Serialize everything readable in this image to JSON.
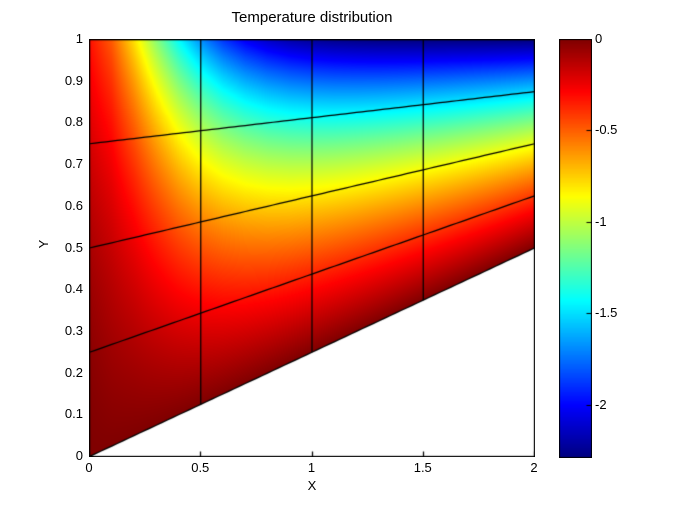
{
  "figure": {
    "background": "#ffffff",
    "title": "Temperature distribution"
  },
  "axes": {
    "xlabel": "X",
    "ylabel": "Y",
    "x_tick_labels": [
      "0",
      "0.5",
      "1",
      "1.5",
      "2"
    ],
    "x_tick_values": [
      0,
      0.5,
      1,
      1.5,
      2
    ],
    "y_tick_labels": [
      "0",
      "0.1",
      "0.2",
      "0.3",
      "0.4",
      "0.5",
      "0.6",
      "0.7",
      "0.8",
      "0.9",
      "1"
    ],
    "y_tick_values": [
      0,
      0.1,
      0.2,
      0.3,
      0.4,
      0.5,
      0.6,
      0.7,
      0.8,
      0.9,
      1
    ],
    "x_range": [
      0,
      2
    ],
    "y_range": [
      0,
      1
    ],
    "axis_color": "#000000",
    "text_color": "#000000"
  },
  "colorbar": {
    "colormap": "jet",
    "clim": [
      -2.287,
      0
    ],
    "tick_labels": [
      "0",
      "-0.5",
      "-1",
      "-1.5",
      "-2"
    ],
    "tick_values": [
      0,
      -0.5,
      -1,
      -1.5,
      -2
    ]
  },
  "chart_data": {
    "type": "heatmap",
    "title": "Temperature distribution",
    "xlabel": "X",
    "ylabel": "Y",
    "xlim": [
      0,
      2
    ],
    "ylim": [
      0,
      1
    ],
    "colormap": "jet",
    "value_range": [
      -2.287,
      0
    ],
    "legend_position": "right-colorbar",
    "grid_on": false,
    "domain": {
      "shape": "quadrilateral",
      "corners_xy": [
        [
          0,
          0
        ],
        [
          2,
          0.5
        ],
        [
          2,
          1
        ],
        [
          0,
          1
        ]
      ],
      "bottom_edge": "y = 0.25*x",
      "top_edge_y": 1
    },
    "mesh_lines": {
      "vertical_x": [
        0,
        0.5,
        1,
        1.5,
        2
      ],
      "lateral_fraction_s": [
        0,
        0.25,
        0.5,
        0.75,
        1
      ],
      "color": "#000000"
    },
    "grid": {
      "nx": 21,
      "ns": 21,
      "x": [
        0.0,
        0.1,
        0.2,
        0.3,
        0.4,
        0.5,
        0.6,
        0.7,
        0.8,
        0.9,
        1.0,
        1.1,
        1.2,
        1.3,
        1.4,
        1.5,
        1.6,
        1.7,
        1.8,
        1.9,
        2.0
      ],
      "s": [
        0.0,
        0.05,
        0.1,
        0.15,
        0.2,
        0.25,
        0.3,
        0.35,
        0.4,
        0.45,
        0.5,
        0.55,
        0.6,
        0.65,
        0.7,
        0.75,
        0.8,
        0.85,
        0.9,
        0.95,
        1.0
      ],
      "note": "temperature T(x,s); physical y = 0.25*x + s*(1-0.25*x)",
      "values": [
        [
          -0.0,
          -0.001,
          -0.005,
          -0.011,
          -0.018,
          -0.026,
          -0.037,
          -0.048,
          -0.061,
          -0.076,
          -0.092,
          -0.109,
          -0.128,
          -0.147,
          -0.168,
          -0.191,
          -0.214,
          -0.239,
          -0.265,
          -0.292,
          -0.32
        ],
        [
          0.0,
          -0.014,
          -0.028,
          -0.043,
          -0.058,
          -0.073,
          -0.09,
          -0.107,
          -0.124,
          -0.143,
          -0.164,
          -0.186,
          -0.209,
          -0.234,
          -0.262,
          -0.292,
          -0.324,
          -0.36,
          -0.399,
          -0.442,
          -0.49
        ],
        [
          0.0,
          -0.022,
          -0.044,
          -0.066,
          -0.09,
          -0.114,
          -0.139,
          -0.165,
          -0.193,
          -0.223,
          -0.256,
          -0.29,
          -0.328,
          -0.369,
          -0.414,
          -0.463,
          -0.517,
          -0.576,
          -0.64,
          -0.712,
          -0.79
        ],
        [
          0.0,
          -0.031,
          -0.063,
          -0.095,
          -0.128,
          -0.163,
          -0.199,
          -0.237,
          -0.277,
          -0.32,
          -0.366,
          -0.416,
          -0.47,
          -0.529,
          -0.593,
          -0.662,
          -0.738,
          -0.821,
          -0.912,
          -1.012,
          -1.121
        ],
        [
          0.0,
          -0.041,
          -0.082,
          -0.124,
          -0.167,
          -0.212,
          -0.259,
          -0.308,
          -0.36,
          -0.416,
          -0.475,
          -0.539,
          -0.609,
          -0.684,
          -0.765,
          -0.853,
          -0.949,
          -1.054,
          -1.168,
          -1.292,
          -1.428
        ],
        [
          0.0,
          -0.049,
          -0.099,
          -0.149,
          -0.201,
          -0.255,
          -0.311,
          -0.371,
          -0.433,
          -0.5,
          -0.571,
          -0.647,
          -0.729,
          -0.817,
          -0.913,
          -1.016,
          -1.129,
          -1.251,
          -1.384,
          -1.528,
          -1.685
        ],
        [
          0.0,
          -0.056,
          -0.113,
          -0.17,
          -0.229,
          -0.291,
          -0.354,
          -0.421,
          -0.492,
          -0.567,
          -0.647,
          -0.733,
          -0.825,
          -0.924,
          -1.031,
          -1.146,
          -1.271,
          -1.407,
          -1.553,
          -1.712,
          -1.884
        ],
        [
          0.0,
          -0.061,
          -0.123,
          -0.186,
          -0.251,
          -0.318,
          -0.388,
          -0.461,
          -0.538,
          -0.619,
          -0.706,
          -0.799,
          -0.898,
          -1.005,
          -1.12,
          -1.244,
          -1.378,
          -1.522,
          -1.678,
          -1.847,
          -2.028
        ],
        [
          0.0,
          -0.065,
          -0.131,
          -0.199,
          -0.267,
          -0.338,
          -0.413,
          -0.49,
          -0.572,
          -0.658,
          -0.75,
          -0.848,
          -0.953,
          -1.065,
          -1.186,
          -1.316,
          -1.455,
          -1.605,
          -1.767,
          -1.941,
          -2.127
        ],
        [
          0.0,
          -0.068,
          -0.137,
          -0.208,
          -0.279,
          -0.354,
          -0.431,
          -0.512,
          -0.597,
          -0.687,
          -0.782,
          -0.884,
          -0.992,
          -1.108,
          -1.233,
          -1.366,
          -1.51,
          -1.664,
          -1.828,
          -2.004,
          -2.192
        ],
        [
          0.0,
          -0.071,
          -0.142,
          -0.214,
          -0.288,
          -0.365,
          -0.444,
          -0.528,
          -0.615,
          -0.707,
          -0.805,
          -0.91,
          -1.021,
          -1.14,
          -1.267,
          -1.403,
          -1.548,
          -1.704,
          -1.87,
          -2.046,
          -2.233
        ],
        [
          0.0,
          -0.072,
          -0.145,
          -0.219,
          -0.295,
          -0.373,
          -0.455,
          -0.54,
          -0.629,
          -0.723,
          -0.823,
          -0.929,
          -1.042,
          -1.163,
          -1.292,
          -1.429,
          -1.576,
          -1.732,
          -1.898,
          -2.073,
          -2.257
        ],
        [
          0.0,
          -0.074,
          -0.148,
          -0.223,
          -0.3,
          -0.38,
          -0.463,
          -0.549,
          -0.64,
          -0.735,
          -0.837,
          -0.944,
          -1.058,
          -1.18,
          -1.31,
          -1.449,
          -1.596,
          -1.752,
          -1.917,
          -2.09,
          -2.271
        ],
        [
          0.0,
          -0.075,
          -0.15,
          -0.226,
          -0.305,
          -0.385,
          -0.469,
          -0.556,
          -0.648,
          -0.745,
          -0.847,
          -0.956,
          -1.071,
          -1.194,
          -1.325,
          -1.464,
          -1.611,
          -1.767,
          -1.931,
          -2.102,
          -2.279
        ],
        [
          0.0,
          -0.076,
          -0.152,
          -0.229,
          -0.308,
          -0.39,
          -0.474,
          -0.563,
          -0.656,
          -0.753,
          -0.856,
          -0.966,
          -1.082,
          -1.206,
          -1.337,
          -1.476,
          -1.623,
          -1.778,
          -1.941,
          -2.109,
          -2.283
        ],
        [
          0.0,
          -0.076,
          -0.153,
          -0.231,
          -0.311,
          -0.394,
          -0.479,
          -0.568,
          -0.662,
          -0.76,
          -0.864,
          -0.975,
          -1.091,
          -1.215,
          -1.347,
          -1.486,
          -1.633,
          -1.787,
          -1.948,
          -2.115,
          -2.285
        ],
        [
          0.0,
          -0.077,
          -0.155,
          -0.233,
          -0.314,
          -0.397,
          -0.484,
          -0.574,
          -0.668,
          -0.767,
          -0.872,
          -0.982,
          -1.1,
          -1.224,
          -1.356,
          -1.495,
          -1.641,
          -1.795,
          -1.954,
          -2.119,
          -2.286
        ],
        [
          0.0,
          -0.078,
          -0.156,
          -0.236,
          -0.317,
          -0.401,
          -0.488,
          -0.578,
          -0.673,
          -0.773,
          -0.878,
          -0.99,
          -1.107,
          -1.232,
          -1.364,
          -1.503,
          -1.649,
          -1.801,
          -1.959,
          -2.122,
          -2.287
        ],
        [
          0.0,
          -0.078,
          -0.157,
          -0.238,
          -0.32,
          -0.404,
          -0.492,
          -0.583,
          -0.678,
          -0.779,
          -0.885,
          -0.997,
          -1.115,
          -1.24,
          -1.371,
          -1.51,
          -1.656,
          -1.807,
          -1.964,
          -2.124,
          -2.287
        ],
        [
          0.0,
          -0.079,
          -0.159,
          -0.239,
          -0.322,
          -0.407,
          -0.495,
          -0.587,
          -0.683,
          -0.784,
          -0.891,
          -1.003,
          -1.122,
          -1.247,
          -1.379,
          -1.517,
          -1.662,
          -1.812,
          -1.968,
          -2.126,
          -2.287
        ],
        [
          0.0,
          -0.08,
          -0.16,
          -0.241,
          -0.325,
          -0.41,
          -0.499,
          -0.592,
          -0.688,
          -0.79,
          -0.897,
          -1.009,
          -1.128,
          -1.253,
          -1.385,
          -1.523,
          -1.667,
          -1.817,
          -1.971,
          -2.128,
          -2.287
        ]
      ]
    }
  }
}
